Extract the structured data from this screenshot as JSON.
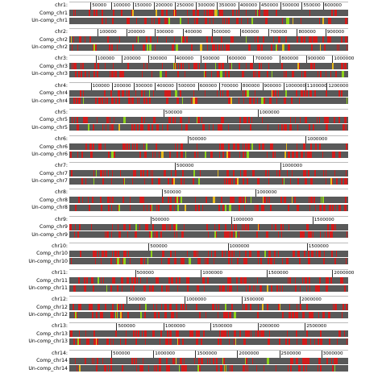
{
  "palette": {
    "track": "#595959",
    "red": "#d11c1c",
    "green": "#8ed11a",
    "yellow": "#e8b81a"
  },
  "chromosomes": [
    {
      "name": "chr1:",
      "comp": "Comp_chr1",
      "uncomp": "Un-comp_chr1",
      "max_bp": 660000,
      "ticks": [
        "50000",
        "100000",
        "150000",
        "200000",
        "250000",
        "300000",
        "350000",
        "400000",
        "450000",
        "500000",
        "550000",
        "600000"
      ]
    },
    {
      "name": "chr2:",
      "comp": "Comp_chr2",
      "uncomp": "Un-comp_chr2",
      "max_bp": 980000,
      "ticks": [
        "100000",
        "200000",
        "300000",
        "400000",
        "500000",
        "600000",
        "700000",
        "800000",
        "900000"
      ]
    },
    {
      "name": "chr3:",
      "comp": "Comp_chr3",
      "uncomp": "Un-comp_chr3",
      "max_bp": 1060000,
      "ticks": [
        "100000",
        "200000",
        "300000",
        "400000",
        "500000",
        "600000",
        "700000",
        "800000",
        "900000",
        "1000000"
      ]
    },
    {
      "name": "chr4:",
      "comp": "Comp_chr4",
      "uncomp": "Un-comp_chr4",
      "max_bp": 1300000,
      "ticks": [
        "100000",
        "200000",
        "300000",
        "400000",
        "500000",
        "600000",
        "700000",
        "800000",
        "900000",
        "1000000",
        "1100000",
        "1200000"
      ]
    },
    {
      "name": "chr5:",
      "comp": "Comp_chr5",
      "uncomp": "Un-comp_chr5",
      "max_bp": 1480000,
      "ticks": [
        "500000",
        "1000000"
      ]
    },
    {
      "name": "chr6:",
      "comp": "Comp_chr6",
      "uncomp": "Un-comp_chr6",
      "max_bp": 1180000,
      "ticks": [
        "500000",
        "1000000"
      ]
    },
    {
      "name": "chr7:",
      "comp": "Comp_chr7",
      "uncomp": "Un-comp_chr7",
      "max_bp": 1320000,
      "ticks": [
        "500000",
        "1000000"
      ]
    },
    {
      "name": "chr8:",
      "comp": "Comp_chr8",
      "uncomp": "Un-comp_chr8",
      "max_bp": 1500000,
      "ticks": [
        "500000",
        "1000000"
      ]
    },
    {
      "name": "chr9:",
      "comp": "Comp_chr9",
      "uncomp": "Un-comp_chr9",
      "max_bp": 1720000,
      "ticks": [
        "500000",
        "1000000",
        "1500000"
      ]
    },
    {
      "name": "chr10:",
      "comp": "Comp_chr10",
      "uncomp": "Un-comp_chr10",
      "max_bp": 1760000,
      "ticks": [
        "500000",
        "1000000",
        "1500000"
      ]
    },
    {
      "name": "chr11:",
      "comp": "Comp_chr11",
      "uncomp": "Un-comp_chr11",
      "max_bp": 2120000,
      "ticks": [
        "500000",
        "1000000",
        "1500000",
        "2000000"
      ]
    },
    {
      "name": "chr12:",
      "comp": "Comp_chr12",
      "uncomp": "Un-comp_chr12",
      "max_bp": 2420000,
      "ticks": [
        "500000",
        "1000000",
        "1500000",
        "2000000"
      ]
    },
    {
      "name": "chr13:",
      "comp": "Comp_chr13",
      "uncomp": "Un-comp_chr13",
      "max_bp": 2960000,
      "ticks": [
        "500000",
        "1000000",
        "1500000",
        "2000000",
        "2500000"
      ]
    },
    {
      "name": "chr14:",
      "comp": "Comp_chr14",
      "uncomp": "Un-comp_chr14",
      "max_bp": 3320000,
      "ticks": [
        "500000",
        "1000000",
        "1500000",
        "2000000",
        "2500000",
        "3000000"
      ]
    }
  ]
}
